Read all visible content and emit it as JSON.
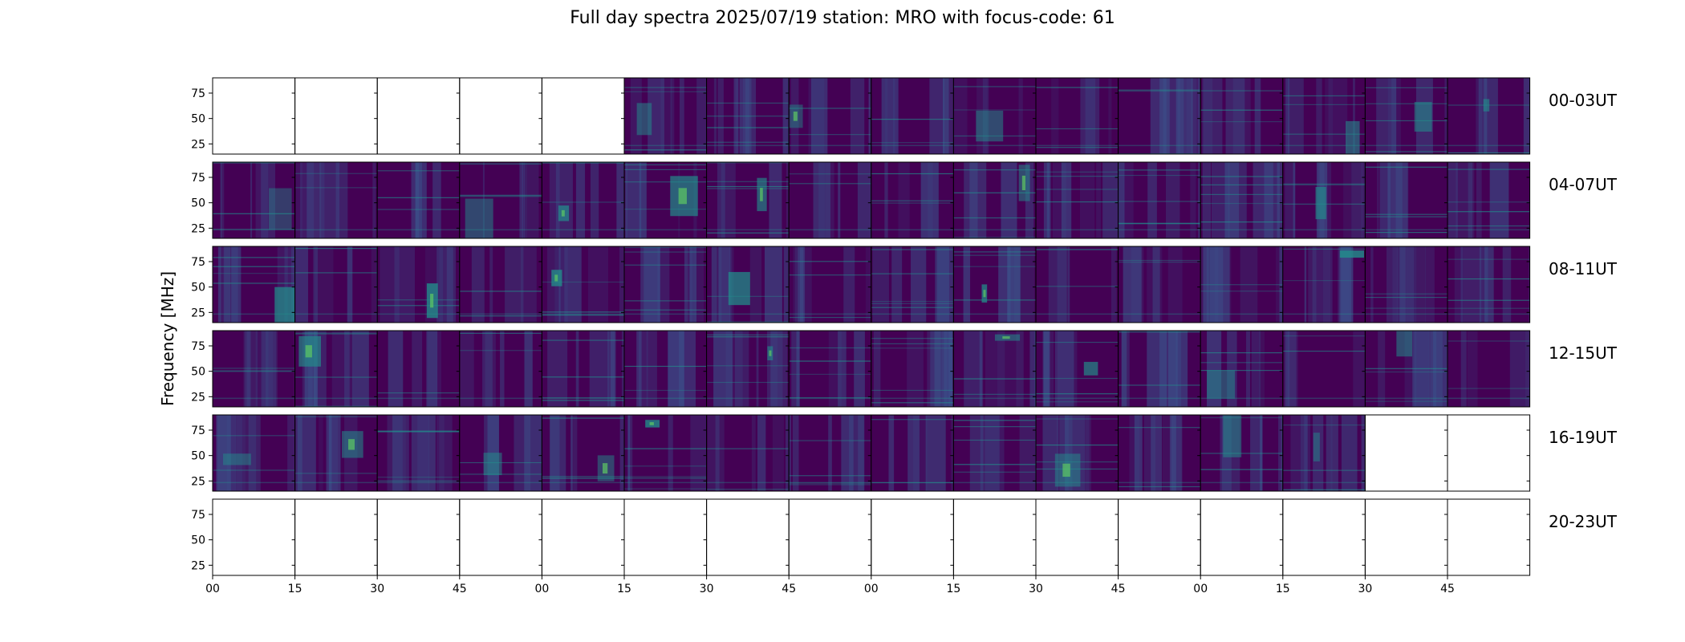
{
  "title": "Full day spectra 2025/07/19 station: MRO with focus-code: 61",
  "chart_data": {
    "type": "heatmap",
    "title": "Full day spectra 2025/07/19 station: MRO with focus-code: 61",
    "ylabel": "Frequency [MHz]",
    "yticks": [
      "75",
      "50",
      "25"
    ],
    "ytick_values": [
      75,
      50,
      25
    ],
    "ylim": [
      15,
      90
    ],
    "xtick_labels": [
      "00",
      "15",
      "30",
      "45",
      "00",
      "15",
      "30",
      "45",
      "00",
      "15",
      "30",
      "45",
      "00",
      "15",
      "30",
      "45"
    ],
    "rows": [
      {
        "label": "00-03UT",
        "filled": [
          0,
          0,
          0,
          0,
          0,
          1,
          1,
          1,
          1,
          1,
          1,
          1,
          1,
          1,
          1,
          1
        ]
      },
      {
        "label": "04-07UT",
        "filled": [
          1,
          1,
          1,
          1,
          1,
          1,
          1,
          1,
          1,
          1,
          1,
          1,
          1,
          1,
          1,
          1
        ]
      },
      {
        "label": "08-11UT",
        "filled": [
          1,
          1,
          1,
          1,
          1,
          1,
          1,
          1,
          1,
          1,
          1,
          1,
          1,
          1,
          1,
          1
        ]
      },
      {
        "label": "12-15UT",
        "filled": [
          1,
          1,
          1,
          1,
          1,
          1,
          1,
          1,
          1,
          1,
          1,
          1,
          1,
          1,
          1,
          1
        ]
      },
      {
        "label": "16-19UT",
        "filled": [
          1,
          1,
          1,
          1,
          1,
          1,
          1,
          1,
          1,
          1,
          1,
          1,
          1,
          1,
          0,
          0
        ]
      },
      {
        "label": "20-23UT",
        "filled": [
          0,
          0,
          0,
          0,
          0,
          0,
          0,
          0,
          0,
          0,
          0,
          0,
          0,
          0,
          0,
          0
        ]
      }
    ],
    "colormap": [
      "#440154",
      "#3b528b",
      "#21918c",
      "#5ec962"
    ]
  }
}
